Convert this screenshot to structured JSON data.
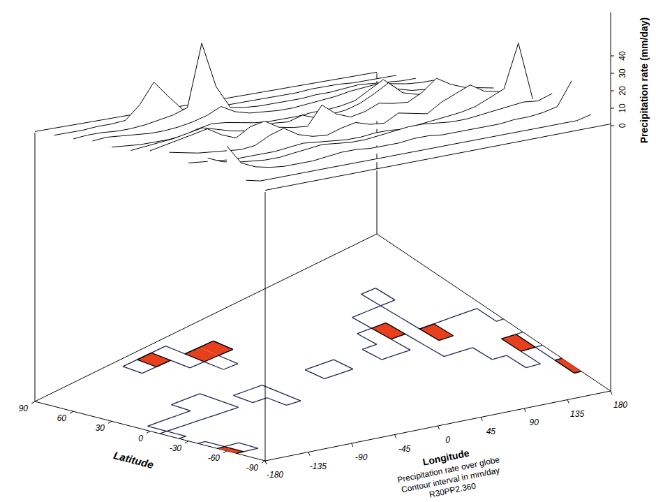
{
  "chart_data": {
    "type": "surface",
    "x_label": "Longitude",
    "y_label": "Latitude",
    "z_label": "Precipitation rate (mm/day)",
    "annotations": [
      "Precipitation rate over globe",
      "Contour interval in mm/day",
      "R30PP2.360"
    ],
    "xlim": [
      -180,
      180
    ],
    "xticks": [
      -180,
      -135,
      -90,
      -45,
      0,
      45,
      90,
      135,
      180
    ],
    "ylim": [
      -90,
      90
    ],
    "yticks": [
      -90,
      -60,
      -30,
      0,
      30,
      60,
      90
    ],
    "zlim": [
      0,
      65
    ],
    "zticks": [
      0,
      10,
      20,
      30,
      40
    ],
    "levels": [
      10,
      20
    ],
    "color": "#e8401c",
    "x": [
      -180,
      -165,
      -150,
      -135,
      -120,
      -105,
      -90,
      -75,
      -60,
      -45,
      -30,
      -15,
      0,
      15,
      30,
      45,
      60,
      75,
      90,
      105,
      120,
      135,
      150,
      165,
      180
    ],
    "y": [
      90,
      75,
      60,
      45,
      30,
      15,
      0,
      -15,
      -30,
      -45,
      -60,
      -75,
      -90
    ],
    "values": [
      [
        1,
        1,
        1,
        1,
        1,
        1,
        1,
        1,
        1,
        1,
        1,
        1,
        1,
        1,
        1,
        1,
        1,
        1,
        1,
        1,
        1,
        1,
        1,
        1,
        1
      ],
      [
        2,
        2,
        2,
        3,
        3,
        4,
        15,
        32,
        18,
        5,
        3,
        2,
        2,
        2,
        2,
        2,
        2,
        2,
        3,
        3,
        3,
        2,
        2,
        2,
        2
      ],
      [
        3,
        4,
        4,
        3,
        3,
        4,
        6,
        8,
        12,
        62,
        25,
        6,
        4,
        3,
        3,
        3,
        3,
        4,
        4,
        5,
        6,
        5,
        4,
        3,
        3
      ],
      [
        5,
        6,
        5,
        4,
        3,
        3,
        4,
        6,
        9,
        14,
        8,
        5,
        4,
        3,
        3,
        4,
        5,
        6,
        8,
        9,
        10,
        8,
        6,
        5,
        5
      ],
      [
        4,
        3,
        2,
        2,
        2,
        3,
        6,
        8,
        7,
        5,
        3,
        2,
        2,
        2,
        3,
        3,
        4,
        6,
        12,
        18,
        9,
        6,
        5,
        4,
        4
      ],
      [
        5,
        6,
        7,
        8,
        10,
        12,
        9,
        6,
        4,
        5,
        6,
        5,
        8,
        4,
        5,
        6,
        9,
        14,
        20,
        11,
        8,
        7,
        6,
        5,
        5
      ],
      [
        8,
        10,
        12,
        14,
        16,
        10,
        6,
        12,
        14,
        8,
        6,
        5,
        18,
        10,
        6,
        8,
        12,
        10,
        9,
        14,
        22,
        16,
        12,
        10,
        8
      ],
      [
        10,
        8,
        6,
        5,
        4,
        3,
        4,
        9,
        12,
        6,
        3,
        2,
        5,
        7,
        4,
        3,
        8,
        6,
        4,
        10,
        14,
        18,
        12,
        10,
        10
      ],
      [
        6,
        5,
        4,
        3,
        3,
        3,
        3,
        4,
        5,
        4,
        3,
        2,
        2,
        3,
        3,
        2,
        3,
        4,
        5,
        6,
        8,
        12,
        16,
        44,
        6
      ],
      [
        12,
        8,
        6,
        5,
        4,
        4,
        5,
        6,
        7,
        6,
        5,
        5,
        6,
        7,
        8,
        8,
        7,
        6,
        6,
        7,
        8,
        9,
        10,
        9,
        12
      ],
      [
        22,
        10,
        6,
        4,
        3,
        3,
        3,
        4,
        5,
        5,
        4,
        4,
        4,
        5,
        5,
        4,
        4,
        4,
        4,
        4,
        5,
        5,
        6,
        8,
        22
      ],
      [
        4,
        2,
        2,
        2,
        2,
        2,
        2,
        2,
        2,
        2,
        2,
        2,
        2,
        2,
        2,
        2,
        2,
        2,
        2,
        2,
        2,
        2,
        2,
        2,
        4
      ],
      [
        1,
        1,
        1,
        1,
        1,
        1,
        1,
        1,
        1,
        1,
        1,
        1,
        1,
        1,
        1,
        1,
        1,
        1,
        1,
        1,
        1,
        1,
        1,
        1,
        1
      ]
    ]
  }
}
